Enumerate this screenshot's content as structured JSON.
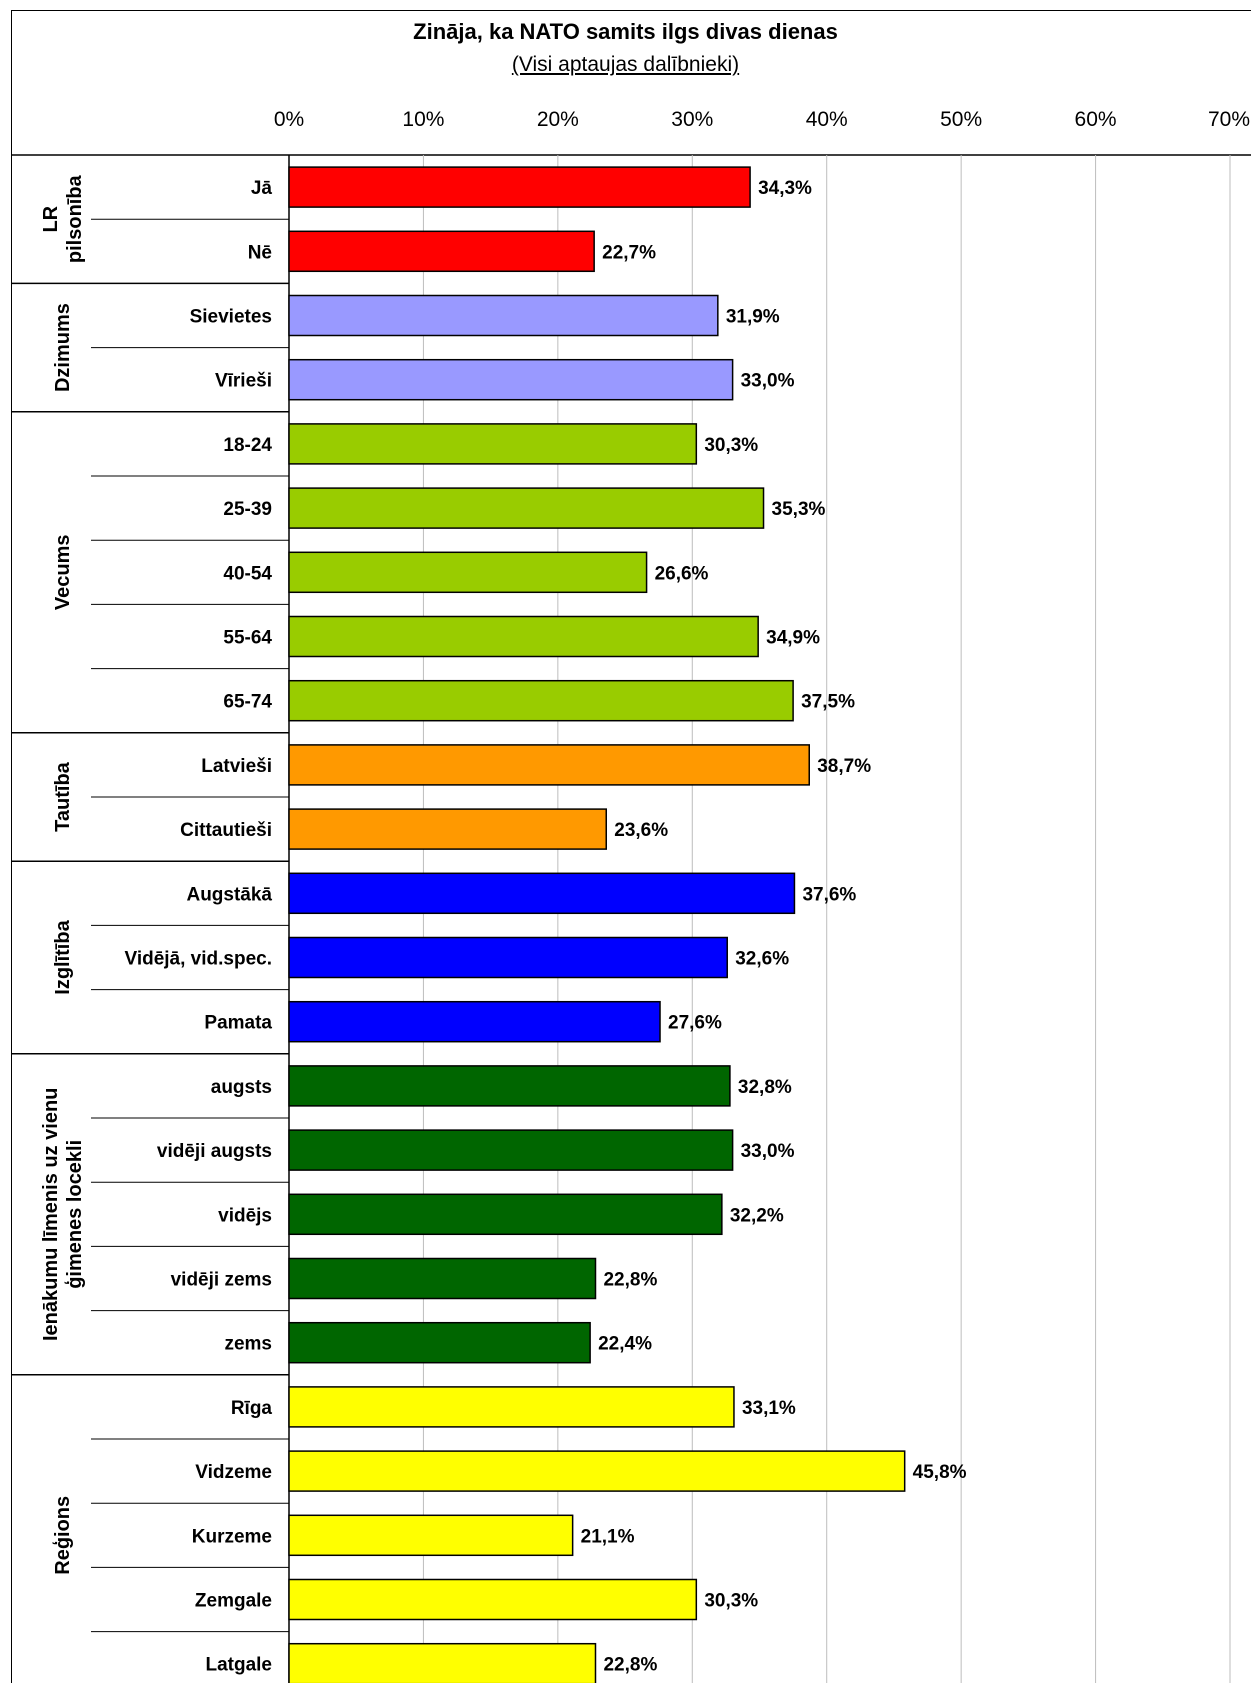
{
  "chart_data": {
    "type": "bar",
    "orientation": "horizontal",
    "title": "Zināja, ka NATO samits ilgs divas dienas",
    "subtitle": "(Visi aptaujas dalībnieki)",
    "x_ticks": [
      "0%",
      "10%",
      "20%",
      "30%",
      "40%",
      "50%",
      "60%",
      "70%"
    ],
    "xlim": [
      0,
      70
    ],
    "grid": true,
    "groups": [
      {
        "name": "LR pilsonība",
        "label_lines": [
          "LR",
          "pilsonība"
        ],
        "color": "#ff0000",
        "categories": [
          "Jā",
          "Nē"
        ],
        "values": [
          34.3,
          22.7
        ],
        "value_labels": [
          "34,3%",
          "22,7%"
        ]
      },
      {
        "name": "Dzimums",
        "label_lines": [
          "Dzimums"
        ],
        "color": "#9999ff",
        "categories": [
          "Sievietes",
          "Vīrieši"
        ],
        "values": [
          31.9,
          33.0
        ],
        "value_labels": [
          "31,9%",
          "33,0%"
        ]
      },
      {
        "name": "Vecums",
        "label_lines": [
          "Vecums"
        ],
        "color": "#99cc00",
        "categories": [
          "18-24",
          "25-39",
          "40-54",
          "55-64",
          "65-74"
        ],
        "values": [
          30.3,
          35.3,
          26.6,
          34.9,
          37.5
        ],
        "value_labels": [
          "30,3%",
          "35,3%",
          "26,6%",
          "34,9%",
          "37,5%"
        ]
      },
      {
        "name": "Tautība",
        "label_lines": [
          "Tautība"
        ],
        "color": "#ff9900",
        "categories": [
          "Latvieši",
          "Cittautieši"
        ],
        "values": [
          38.7,
          23.6
        ],
        "value_labels": [
          "38,7%",
          "23,6%"
        ]
      },
      {
        "name": "Izglītība",
        "label_lines": [
          "Izglītība"
        ],
        "color": "#0000ff",
        "categories": [
          "Augstākā",
          "Vidējā, vid.spec.",
          "Pamata"
        ],
        "values": [
          37.6,
          32.6,
          27.6
        ],
        "value_labels": [
          "37,6%",
          "32,6%",
          "27,6%"
        ]
      },
      {
        "name": "Ienākumu līmenis uz vienu ģimenes locekli",
        "label_lines": [
          "Ienākumu līmenis uz vienu",
          "ģimenes locekli"
        ],
        "color": "#006600",
        "categories": [
          "augsts",
          "vidēji augsts",
          "vidējs",
          "vidēji zems",
          "zems"
        ],
        "values": [
          32.8,
          33.0,
          32.2,
          22.8,
          22.4
        ],
        "value_labels": [
          "32,8%",
          "33,0%",
          "32,2%",
          "22,8%",
          "22,4%"
        ]
      },
      {
        "name": "Reģions",
        "label_lines": [
          "Reģions"
        ],
        "color": "#ffff00",
        "categories": [
          "Rīga",
          "Vidzeme",
          "Kurzeme",
          "Zemgale",
          "Latgale"
        ],
        "values": [
          33.1,
          45.8,
          21.1,
          30.3,
          22.8
        ],
        "value_labels": [
          "33,1%",
          "45,8%",
          "21,1%",
          "30,3%",
          "22,8%"
        ]
      }
    ]
  }
}
